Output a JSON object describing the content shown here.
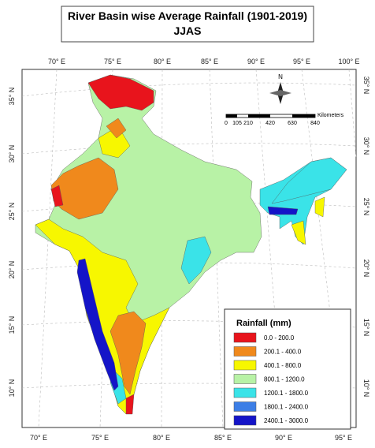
{
  "title": {
    "line1": "River Basin wise Average Rainfall (1901-2019)",
    "line2": "JJAS"
  },
  "top_labels": [
    "70° E",
    "75° E",
    "80° E",
    "85° E",
    "90° E",
    "95° E",
    "100° E"
  ],
  "bottom_labels": [
    "70° E",
    "75° E",
    "80° E",
    "85° E",
    "90° E",
    "95° E"
  ],
  "left_labels": [
    "35° N",
    "30° N",
    "25° N",
    "20° N",
    "15° N",
    "10° N"
  ],
  "right_labels": [
    "35° N",
    "30° N",
    "25° N",
    "20° N",
    "15° N",
    "10° N"
  ],
  "north": "N",
  "scale": {
    "ticks": [
      "0",
      "105",
      "210",
      "420",
      "630",
      "840"
    ],
    "unit": "Kilometers"
  },
  "legend": {
    "title": "Rainfall (mm)",
    "items": [
      {
        "label": "0.0 - 200.0",
        "color": "#e8141c"
      },
      {
        "label": "200.1 - 400.0",
        "color": "#f0891c"
      },
      {
        "label": "400.1 - 800.0",
        "color": "#f7f700"
      },
      {
        "label": "800.1 - 1200.0",
        "color": "#b8f2a6"
      },
      {
        "label": "1200.1 - 1800.0",
        "color": "#3ae3e8"
      },
      {
        "label": "1800.1 - 2400.0",
        "color": "#3c7ee6"
      },
      {
        "label": "2400.1 - 3000.0",
        "color": "#1414c8"
      }
    ]
  }
}
